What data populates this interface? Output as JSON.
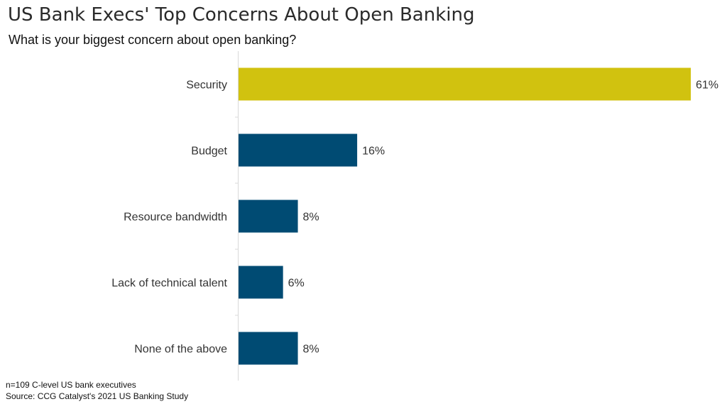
{
  "title": "US Bank Execs' Top Concerns About Open Banking",
  "subtitle": "What is your biggest concern about open banking?",
  "footnotes": {
    "sample": "n=109 C-level US bank executives",
    "source": "Source: CCG Catalyst's 2021 US Banking Study"
  },
  "colors": {
    "highlight": "#D1C20F",
    "bar": "#004B73",
    "gridline": "#D9D9D9"
  },
  "chart_data": {
    "type": "bar",
    "orientation": "horizontal",
    "title": "US Bank Execs' Top Concerns About Open Banking",
    "subtitle": "What is your biggest concern about open banking?",
    "categories": [
      "Security",
      "Budget",
      "Resource bandwidth",
      "Lack of technical talent",
      "None of the above"
    ],
    "values": [
      61,
      16,
      8,
      6,
      8
    ],
    "labels": [
      "61%",
      "16%",
      "8%",
      "6%",
      "8%"
    ],
    "unit": "%",
    "highlight_index": 0,
    "xlim": [
      0,
      61
    ],
    "xlabel": "",
    "ylabel": "",
    "grid": false,
    "legend": "none"
  }
}
